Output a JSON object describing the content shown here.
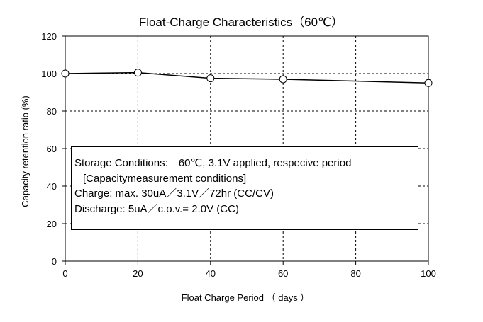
{
  "chart_data": {
    "type": "line",
    "title": "Float-Charge Characteristics（60℃）",
    "xlabel": "Float Charge Period （ days ）",
    "ylabel": "Capacity retention ratio (%)",
    "xlim": [
      0,
      100
    ],
    "ylim": [
      0,
      120
    ],
    "xticks": [
      0,
      20,
      40,
      60,
      80,
      100
    ],
    "yticks": [
      0,
      20,
      40,
      60,
      80,
      100,
      120
    ],
    "grid": {
      "x": "dashed",
      "y": "dashed"
    },
    "series": [
      {
        "color": "#000000",
        "marker": "open-circle",
        "x": [
          0,
          20,
          40,
          60,
          100
        ],
        "y": [
          100,
          100.5,
          97.5,
          97,
          95
        ]
      }
    ],
    "annotation_lines": [
      "Storage Conditions:　60℃, 3.1V applied, respecive period",
      "[Capacitymeasurement conditions]",
      "Charge: max. 30uA／3.1V／72hr (CC/CV)",
      "Discharge: 5uA／c.o.v.= 2.0V (CC)"
    ]
  }
}
